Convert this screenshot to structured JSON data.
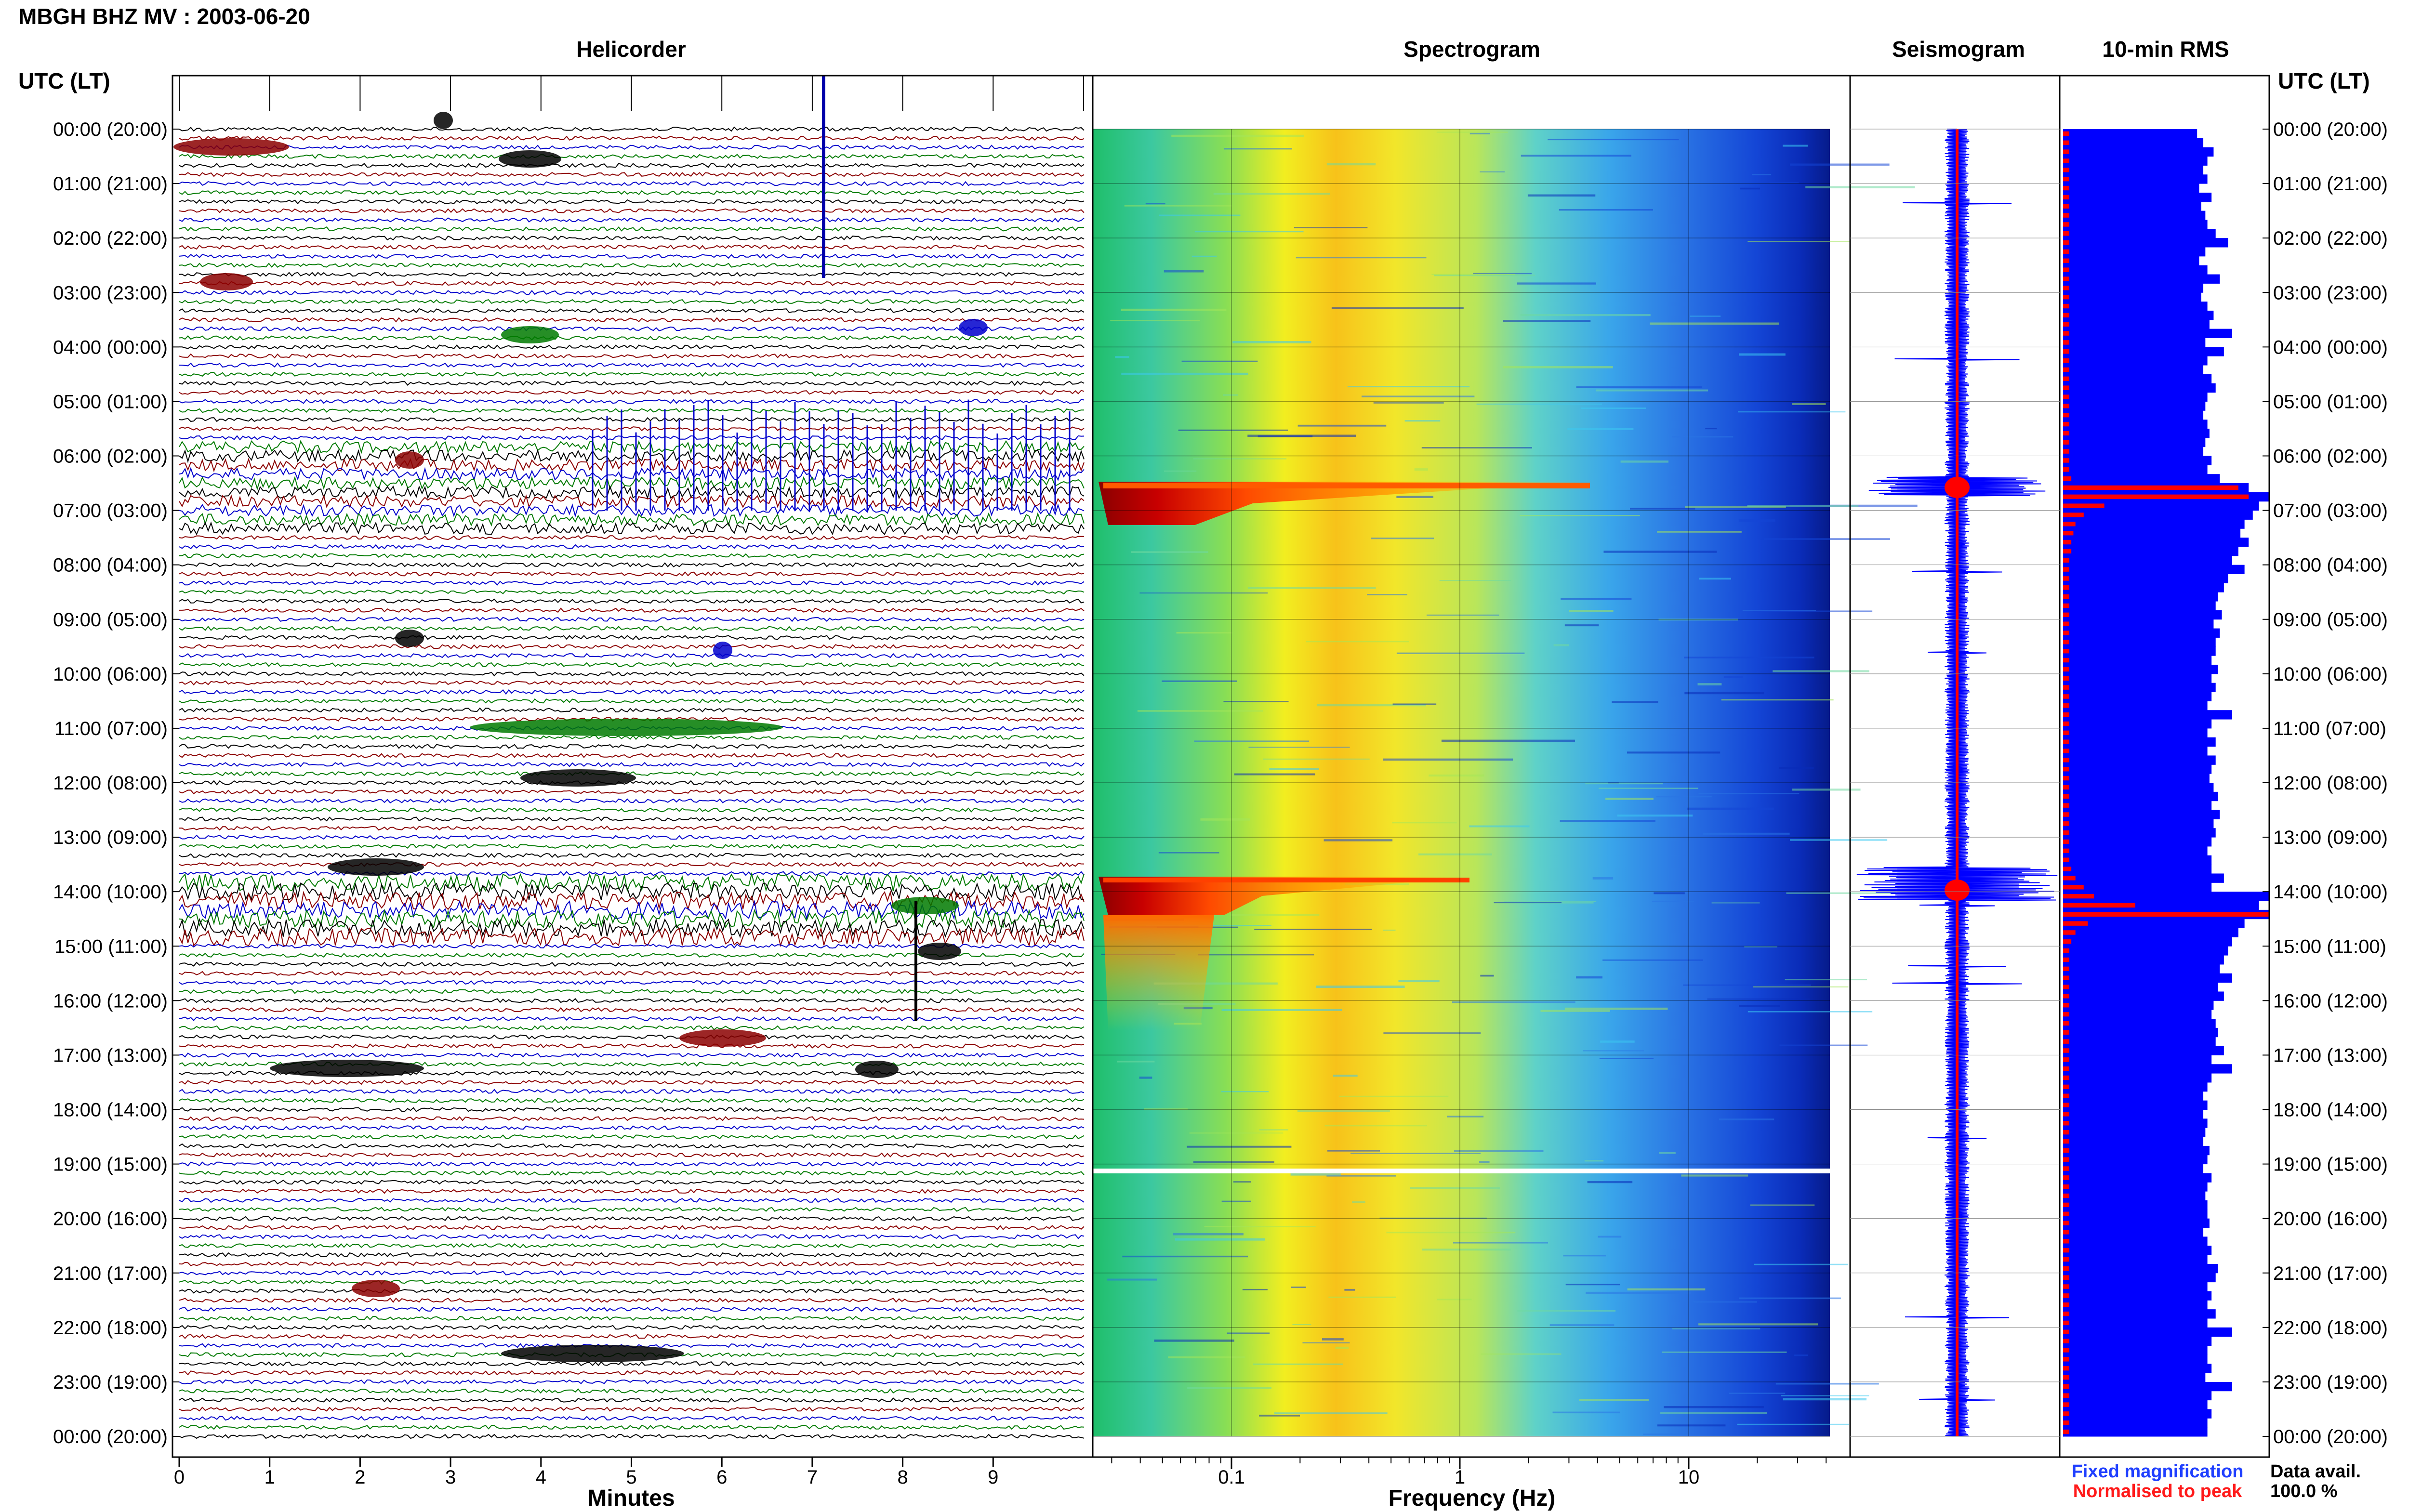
{
  "title": "MBGH BHZ MV : 2003-06-20",
  "panels": {
    "helicorder": "Helicorder",
    "spectrogram": "Spectrogram",
    "seismogram": "Seismogram",
    "rms": "10-min RMS"
  },
  "time_axis_label": "UTC (LT)",
  "time_labels": [
    "00:00 (20:00)",
    "01:00 (21:00)",
    "02:00 (22:00)",
    "03:00 (23:00)",
    "04:00 (00:00)",
    "05:00 (01:00)",
    "06:00 (02:00)",
    "07:00 (03:00)",
    "08:00 (04:00)",
    "09:00 (05:00)",
    "10:00 (06:00)",
    "11:00 (07:00)",
    "12:00 (08:00)",
    "13:00 (09:00)",
    "14:00 (10:00)",
    "15:00 (11:00)",
    "16:00 (12:00)",
    "17:00 (13:00)",
    "18:00 (14:00)",
    "19:00 (15:00)",
    "20:00 (16:00)",
    "21:00 (17:00)",
    "22:00 (18:00)",
    "23:00 (19:00)",
    "00:00 (20:00)"
  ],
  "helicorder_x": {
    "label": "Minutes",
    "ticks": [
      "0",
      "1",
      "2",
      "3",
      "4",
      "5",
      "6",
      "7",
      "8",
      "9"
    ]
  },
  "spectrogram_x": {
    "label": "Frequency (Hz)",
    "ticks": [
      "0.1",
      "1",
      "10"
    ],
    "scale": "log"
  },
  "legend": {
    "fixed": "Fixed magnification",
    "normalised": "Normalised to peak"
  },
  "availability": {
    "label": "Data avail.",
    "value": "100.0 %"
  },
  "colors": {
    "trace_cycle": [
      "#000000",
      "#8b0000",
      "#0000cc",
      "#007a00"
    ],
    "blue": "#0000ff",
    "red": "#ff0000"
  },
  "events": [
    {
      "time": "06:40",
      "type": "strong",
      "note": "high-energy broadband signal"
    },
    {
      "time": "13:55",
      "type": "strong",
      "note": "high-energy broadband signal"
    },
    {
      "time": "19:00",
      "type": "gap",
      "note": "spectrogram gap line"
    }
  ],
  "rms_fixed": [
    0.65,
    0.68,
    0.73,
    0.7,
    0.68,
    0.7,
    0.66,
    0.72,
    0.67,
    0.69,
    0.7,
    0.74,
    0.8,
    0.69,
    0.66,
    0.7,
    0.76,
    0.68,
    0.67,
    0.7,
    0.73,
    0.71,
    0.82,
    0.69,
    0.78,
    0.7,
    0.68,
    0.72,
    0.74,
    0.7,
    0.69,
    0.68,
    0.7,
    0.71,
    0.69,
    0.68,
    0.72,
    0.7,
    0.76,
    0.9,
    1.0,
    0.95,
    0.92,
    0.88,
    0.86,
    0.9,
    0.85,
    0.82,
    0.88,
    0.8,
    0.78,
    0.75,
    0.74,
    0.77,
    0.73,
    0.76,
    0.74,
    0.74,
    0.72,
    0.75,
    0.72,
    0.74,
    0.72,
    0.7,
    0.82,
    0.72,
    0.7,
    0.74,
    0.7,
    0.74,
    0.72,
    0.71,
    0.73,
    0.75,
    0.72,
    0.76,
    0.73,
    0.74,
    0.72,
    0.7,
    0.72,
    0.72,
    0.78,
    0.72,
    1.0,
    0.95,
    1.0,
    0.88,
    0.85,
    0.82,
    0.8,
    0.78,
    0.76,
    0.82,
    0.75,
    0.78,
    0.73,
    0.72,
    0.74,
    0.75,
    0.74,
    0.78,
    0.72,
    0.82,
    0.72,
    0.7,
    0.68,
    0.7,
    0.68,
    0.7,
    0.69,
    0.68,
    0.71,
    0.7,
    0.68,
    0.72,
    0.7,
    0.69,
    0.7,
    0.7,
    0.71,
    0.68,
    0.7,
    0.72,
    0.7,
    0.75,
    0.74,
    0.7,
    0.72,
    0.7,
    0.74,
    0.7,
    0.82,
    0.72,
    0.7,
    0.7,
    0.72,
    0.69,
    0.82,
    0.72,
    0.7,
    0.72,
    0.7,
    0.7
  ],
  "rms_norm": [
    0.03,
    0.03,
    0.03,
    0.03,
    0.03,
    0.03,
    0.03,
    0.03,
    0.03,
    0.03,
    0.03,
    0.03,
    0.03,
    0.03,
    0.03,
    0.03,
    0.03,
    0.03,
    0.03,
    0.03,
    0.03,
    0.03,
    0.03,
    0.03,
    0.03,
    0.03,
    0.03,
    0.03,
    0.03,
    0.03,
    0.03,
    0.03,
    0.03,
    0.03,
    0.03,
    0.03,
    0.03,
    0.03,
    0.04,
    0.85,
    0.9,
    0.2,
    0.1,
    0.06,
    0.05,
    0.04,
    0.04,
    0.03,
    0.03,
    0.03,
    0.03,
    0.03,
    0.03,
    0.03,
    0.03,
    0.03,
    0.03,
    0.03,
    0.03,
    0.03,
    0.03,
    0.03,
    0.03,
    0.03,
    0.03,
    0.03,
    0.03,
    0.03,
    0.03,
    0.03,
    0.03,
    0.03,
    0.03,
    0.03,
    0.03,
    0.03,
    0.03,
    0.03,
    0.03,
    0.03,
    0.03,
    0.04,
    0.06,
    0.1,
    0.15,
    0.35,
    1.0,
    0.12,
    0.06,
    0.04,
    0.03,
    0.03,
    0.03,
    0.03,
    0.03,
    0.03,
    0.03,
    0.03,
    0.03,
    0.03,
    0.03,
    0.03,
    0.03,
    0.03,
    0.03,
    0.03,
    0.03,
    0.03,
    0.03,
    0.03,
    0.03,
    0.03,
    0.03,
    0.03,
    0.03,
    0.03,
    0.03,
    0.03,
    0.03,
    0.03,
    0.03,
    0.03,
    0.03,
    0.03,
    0.03,
    0.03,
    0.03,
    0.03,
    0.03,
    0.03,
    0.03,
    0.03,
    0.03,
    0.03,
    0.03,
    0.03,
    0.03,
    0.03,
    0.03,
    0.03,
    0.03,
    0.03,
    0.03,
    0.03
  ]
}
